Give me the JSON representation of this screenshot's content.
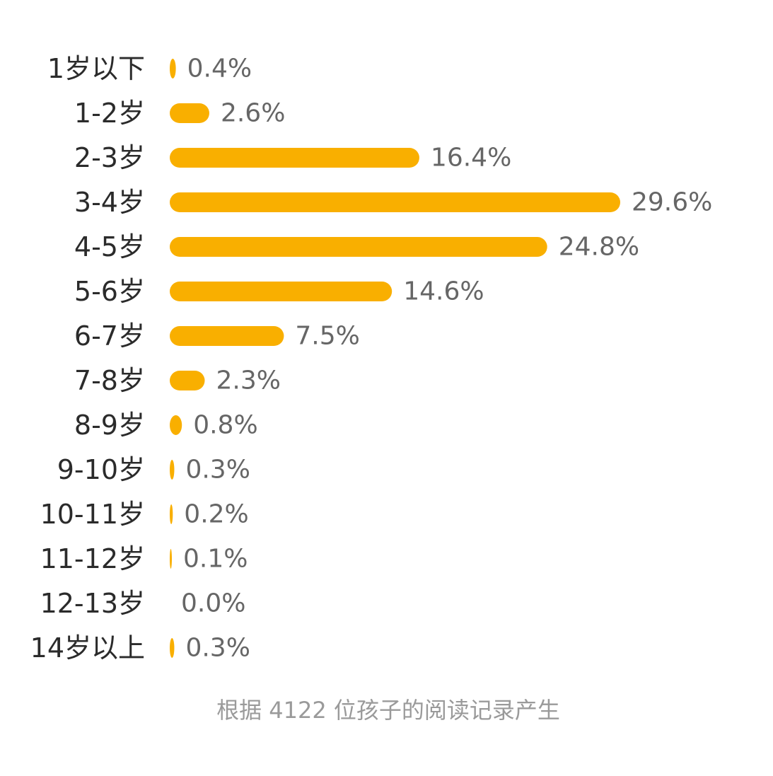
{
  "chart_data": {
    "type": "bar",
    "orientation": "horizontal",
    "categories": [
      "1岁以下",
      "1-2岁",
      "2-3岁",
      "3-4岁",
      "4-5岁",
      "5-6岁",
      "6-7岁",
      "7-8岁",
      "8-9岁",
      "9-10岁",
      "10-11岁",
      "11-12岁",
      "12-13岁",
      "14岁以上"
    ],
    "values": [
      0.4,
      2.6,
      16.4,
      29.6,
      24.8,
      14.6,
      7.5,
      2.3,
      0.8,
      0.3,
      0.2,
      0.1,
      0.0,
      0.3
    ],
    "value_labels": [
      "0.4%",
      "2.6%",
      "16.4%",
      "29.6%",
      "24.8%",
      "14.6%",
      "7.5%",
      "2.3%",
      "0.8%",
      "0.3%",
      "0.2%",
      "0.1%",
      "0.0%",
      "0.3%"
    ],
    "unit": "%",
    "title": "",
    "xlabel": "",
    "ylabel": "",
    "grid": false,
    "legend": "none",
    "bar_color": "#F9AF00",
    "category_label_color": "#2b2b2b",
    "value_label_color": "#666666"
  },
  "footnote": {
    "text": "根据 4122 位孩子的阅读记录产生",
    "color": "#9a9a9a"
  }
}
